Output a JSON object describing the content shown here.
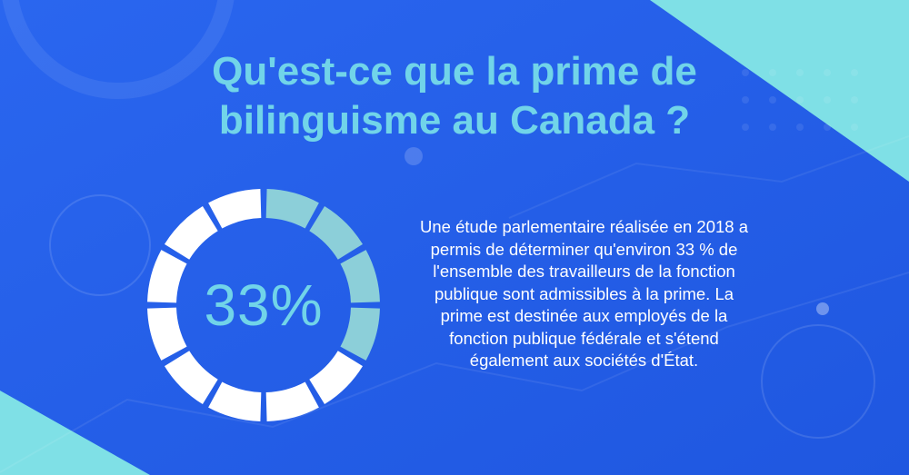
{
  "title": {
    "line1": "Qu'est-ce que la prime de",
    "line2": "bilinguisme au Canada ?"
  },
  "stat": {
    "percent_label": "33%",
    "fraction": 0.33,
    "segments_total": 12,
    "segments_highlighted": 4
  },
  "body": {
    "text": "Une étude parlementaire réalisée en 2018 a permis de déterminer qu'environ 33 % de l'ensemble des travailleurs de la fonction publique sont admissibles à la prime. La prime est destinée aux employés de la fonction publique fédérale et s'étend également aux sociétés d'État."
  },
  "colors": {
    "background": "#2563ea",
    "accent_teal": "#71d4e9",
    "segment_highlight": "#8ccfd9",
    "segment_base": "#ffffff",
    "corner_teal": "#7fe0e6"
  }
}
